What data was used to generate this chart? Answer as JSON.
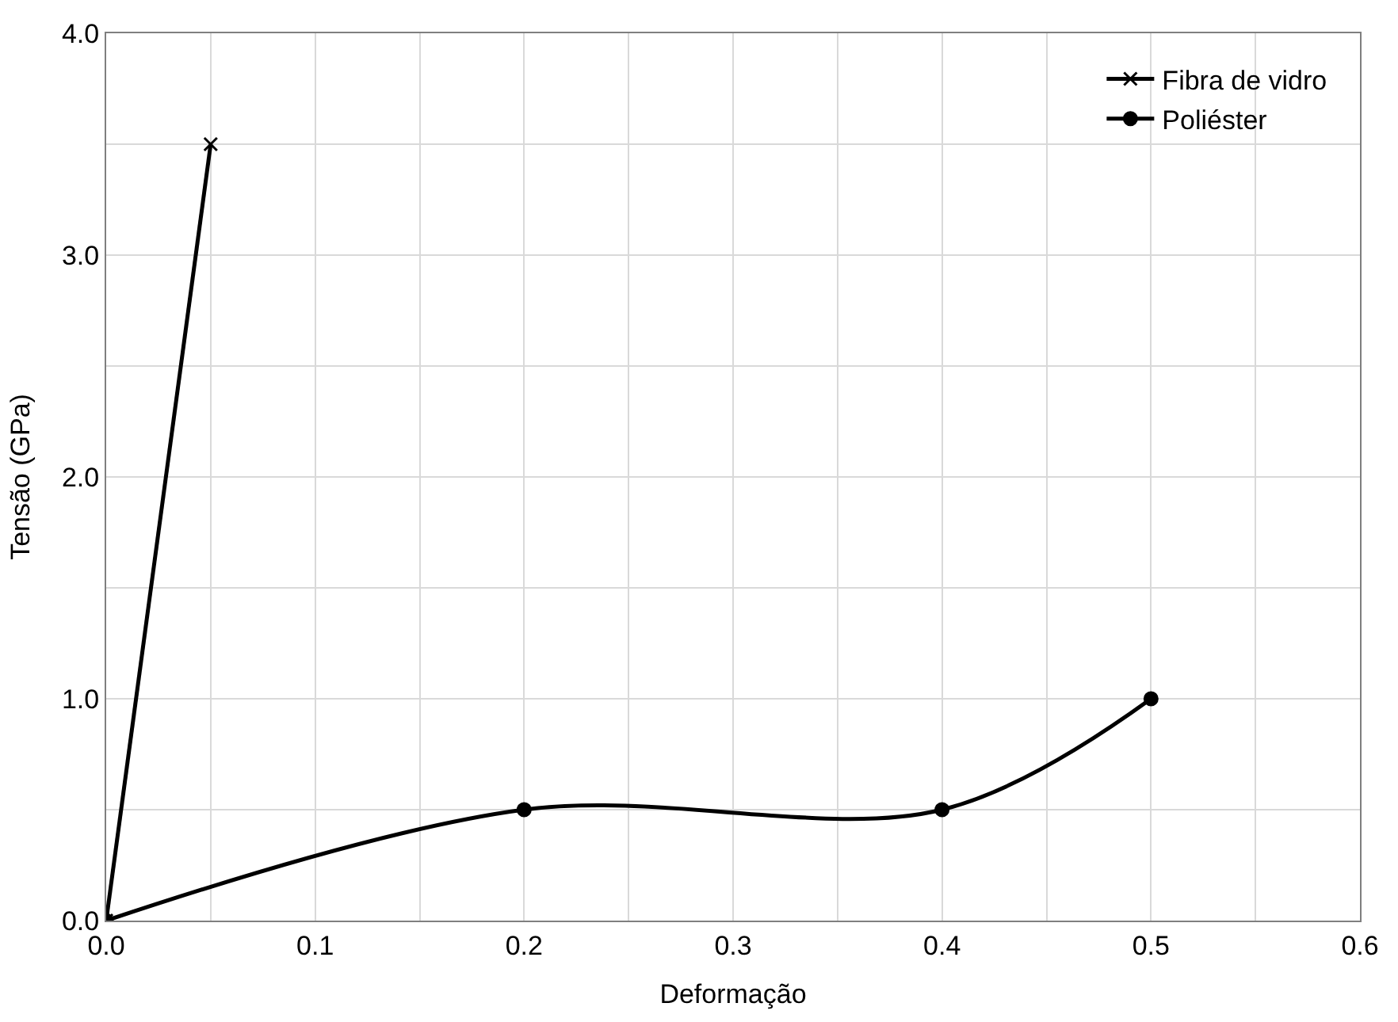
{
  "chart_data": {
    "type": "line",
    "xlabel": "Deformação",
    "ylabel": "Tensão (GPa)",
    "series": [
      {
        "name": "Fibra de vidro",
        "color": "#000000",
        "x": [
          0,
          0.05
        ],
        "values": [
          0,
          3.5
        ],
        "marker": "cross"
      },
      {
        "name": "Poliéster",
        "color": "#000000",
        "x": [
          0,
          0.2,
          0.4,
          0.5
        ],
        "values": [
          0,
          0.5,
          0.5,
          1.0
        ],
        "marker": "circle"
      }
    ],
    "xlim": [
      0,
      0.6
    ],
    "ylim": [
      0,
      4
    ],
    "xticks": [
      {
        "value": 0,
        "label": "0.0"
      },
      {
        "value": 0.05,
        "label": null
      },
      {
        "value": 0.1,
        "label": "0.1"
      },
      {
        "value": 0.15,
        "label": null
      },
      {
        "value": 0.2,
        "label": "0.2"
      },
      {
        "value": 0.25,
        "label": null
      },
      {
        "value": 0.3,
        "label": "0.3"
      },
      {
        "value": 0.35,
        "label": null
      },
      {
        "value": 0.4,
        "label": "0.4"
      },
      {
        "value": 0.45,
        "label": null
      },
      {
        "value": 0.5,
        "label": "0.5"
      },
      {
        "value": 0.55,
        "label": null
      },
      {
        "value": 0.6,
        "label": "0.6"
      }
    ],
    "yticks": [
      {
        "value": 0,
        "label": "0.0"
      },
      {
        "value": 0.5,
        "label": null
      },
      {
        "value": 1,
        "label": "1.0"
      },
      {
        "value": 1.5,
        "label": null
      },
      {
        "value": 2,
        "label": "2.0"
      },
      {
        "value": 2.5,
        "label": null
      },
      {
        "value": 3,
        "label": "3.0"
      },
      {
        "value": 3.5,
        "label": null
      },
      {
        "value": 4,
        "label": "4.0"
      }
    ],
    "grid": true,
    "legend": "top right",
    "line_style": "solid"
  }
}
